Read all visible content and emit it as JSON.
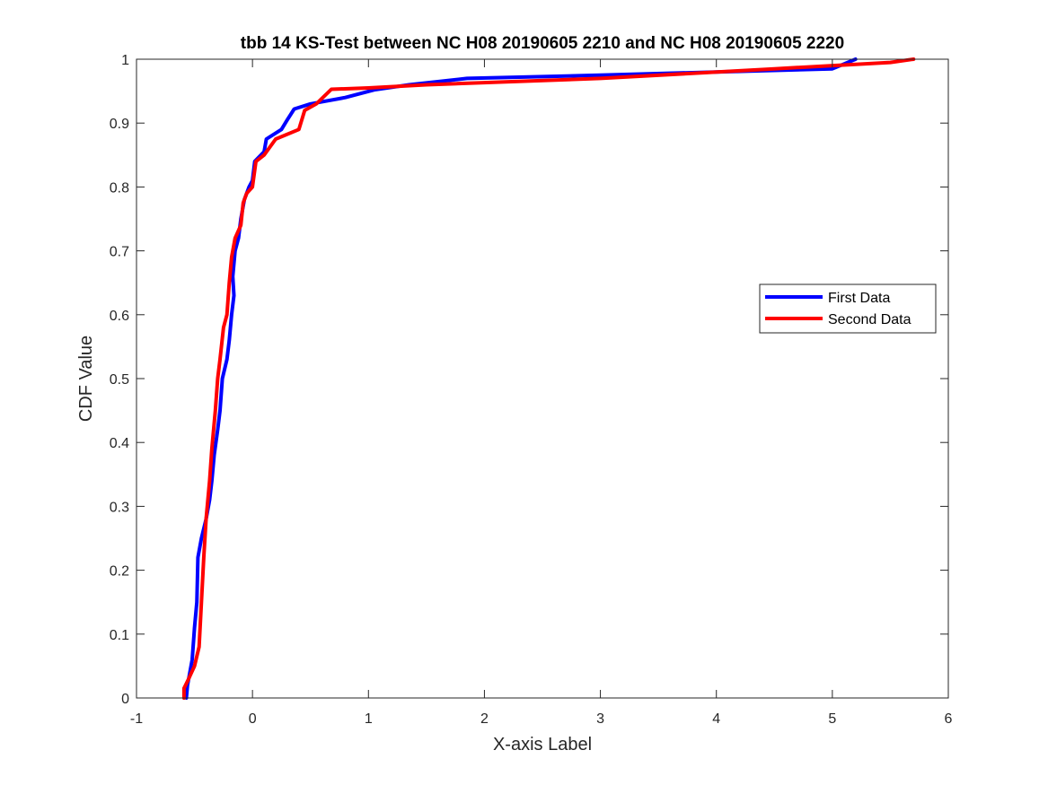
{
  "chart_data": {
    "type": "line",
    "title": "tbb 14 KS-Test between NC H08 20190605 2210 and NC H08 20190605 2220",
    "xlabel": "X-axis Label",
    "ylabel": "CDF Value",
    "xlim": [
      -1,
      6
    ],
    "ylim": [
      0,
      1
    ],
    "x_ticks": [
      "-1",
      "0",
      "1",
      "2",
      "3",
      "4",
      "5",
      "6"
    ],
    "y_ticks": [
      "0",
      "0.1",
      "0.2",
      "0.3",
      "0.4",
      "0.5",
      "0.6",
      "0.7",
      "0.8",
      "0.9",
      "1"
    ],
    "grid": false,
    "box": true,
    "legend_position": "right",
    "series": [
      {
        "name": "First Data",
        "color": "#0000ff",
        "points": [
          [
            -0.57,
            0.0
          ],
          [
            -0.56,
            0.02
          ],
          [
            -0.52,
            0.06
          ],
          [
            -0.5,
            0.11
          ],
          [
            -0.48,
            0.15
          ],
          [
            -0.47,
            0.22
          ],
          [
            -0.44,
            0.25
          ],
          [
            -0.4,
            0.28
          ],
          [
            -0.37,
            0.31
          ],
          [
            -0.35,
            0.34
          ],
          [
            -0.33,
            0.38
          ],
          [
            -0.3,
            0.42
          ],
          [
            -0.28,
            0.45
          ],
          [
            -0.26,
            0.5
          ],
          [
            -0.22,
            0.53
          ],
          [
            -0.2,
            0.56
          ],
          [
            -0.18,
            0.6
          ],
          [
            -0.16,
            0.63
          ],
          [
            -0.17,
            0.66
          ],
          [
            -0.15,
            0.7
          ],
          [
            -0.12,
            0.72
          ],
          [
            -0.1,
            0.75
          ],
          [
            -0.07,
            0.78
          ],
          [
            -0.05,
            0.79
          ],
          [
            -0.03,
            0.8
          ],
          [
            0.0,
            0.81
          ],
          [
            0.02,
            0.84
          ],
          [
            0.1,
            0.855
          ],
          [
            0.12,
            0.875
          ],
          [
            0.25,
            0.89
          ],
          [
            0.3,
            0.905
          ],
          [
            0.36,
            0.922
          ],
          [
            0.5,
            0.93
          ],
          [
            0.8,
            0.94
          ],
          [
            1.05,
            0.952
          ],
          [
            1.35,
            0.96
          ],
          [
            1.85,
            0.97
          ],
          [
            3.0,
            0.975
          ],
          [
            4.0,
            0.98
          ],
          [
            5.0,
            0.985
          ],
          [
            5.2,
            1.0
          ]
        ]
      },
      {
        "name": "Second Data",
        "color": "#ff0000",
        "points": [
          [
            -0.59,
            0.0
          ],
          [
            -0.59,
            0.015
          ],
          [
            -0.55,
            0.03
          ],
          [
            -0.5,
            0.05
          ],
          [
            -0.46,
            0.08
          ],
          [
            -0.44,
            0.15
          ],
          [
            -0.42,
            0.22
          ],
          [
            -0.4,
            0.28
          ],
          [
            -0.37,
            0.34
          ],
          [
            -0.35,
            0.39
          ],
          [
            -0.32,
            0.45
          ],
          [
            -0.3,
            0.5
          ],
          [
            -0.28,
            0.53
          ],
          [
            -0.25,
            0.58
          ],
          [
            -0.22,
            0.6
          ],
          [
            -0.2,
            0.65
          ],
          [
            -0.18,
            0.69
          ],
          [
            -0.15,
            0.72
          ],
          [
            -0.1,
            0.74
          ],
          [
            -0.08,
            0.775
          ],
          [
            -0.05,
            0.79
          ],
          [
            0.0,
            0.8
          ],
          [
            0.03,
            0.84
          ],
          [
            0.1,
            0.85
          ],
          [
            0.2,
            0.875
          ],
          [
            0.4,
            0.89
          ],
          [
            0.45,
            0.92
          ],
          [
            0.55,
            0.93
          ],
          [
            0.68,
            0.953
          ],
          [
            1.0,
            0.955
          ],
          [
            1.5,
            0.96
          ],
          [
            3.0,
            0.97
          ],
          [
            4.5,
            0.985
          ],
          [
            5.5,
            0.995
          ],
          [
            5.7,
            1.0
          ]
        ]
      }
    ]
  }
}
